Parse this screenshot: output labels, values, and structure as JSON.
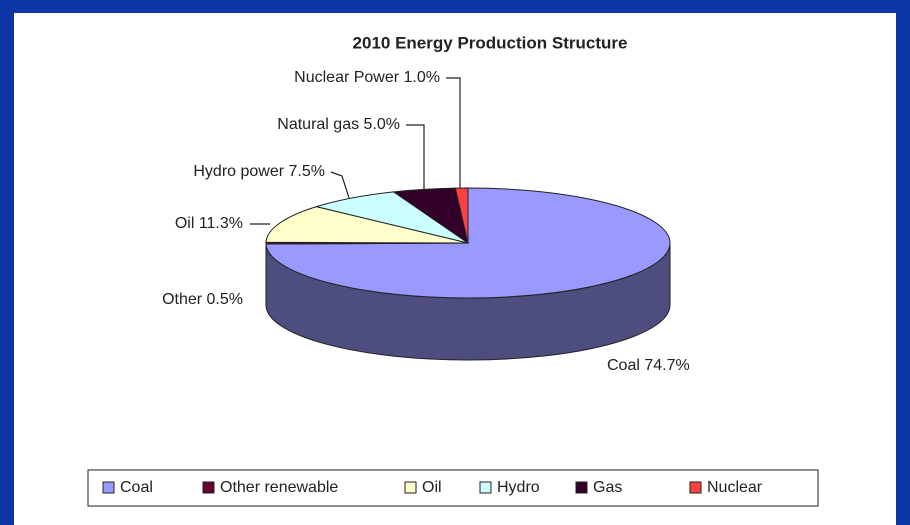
{
  "chart_data": {
    "type": "pie3d",
    "title": "2010 Energy Production Structure",
    "categories": [
      "Coal",
      "Other renewable",
      "Oil",
      "Hydro",
      "Gas",
      "Nuclear"
    ],
    "values": [
      74.7,
      0.5,
      11.3,
      7.5,
      5.0,
      1.0
    ],
    "value_labels": [
      "Coal 74.7%",
      "Other 0.5%",
      "Oil 11.3%",
      "Hydro power 7.5%",
      "Natural gas 5.0%",
      "Nuclear Power 1.0%"
    ],
    "colors": [
      "#9999ff",
      "#660033",
      "#ffffcc",
      "#ccffff",
      "#33002a",
      "#ff4040"
    ],
    "legend": "bottom"
  }
}
